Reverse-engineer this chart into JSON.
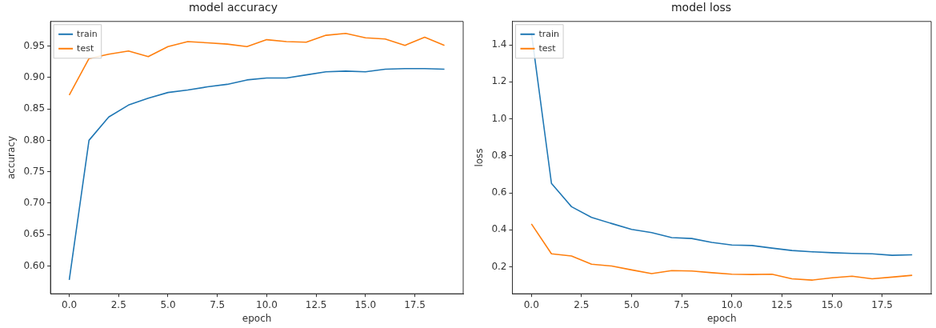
{
  "chart_data": [
    {
      "type": "line",
      "title": "model accuracy",
      "xlabel": "epoch",
      "ylabel": "accuracy",
      "x": [
        0,
        1,
        2,
        3,
        4,
        5,
        6,
        7,
        8,
        9,
        10,
        11,
        12,
        13,
        14,
        15,
        16,
        17,
        18,
        19
      ],
      "series": [
        {
          "name": "train",
          "color": "#1f77b4",
          "values": [
            0.578,
            0.8,
            0.837,
            0.856,
            0.867,
            0.876,
            0.88,
            0.885,
            0.889,
            0.896,
            0.899,
            0.899,
            0.904,
            0.909,
            0.91,
            0.909,
            0.913,
            0.914,
            0.914,
            0.913
          ]
        },
        {
          "name": "test",
          "color": "#ff7f0e",
          "values": [
            0.872,
            0.93,
            0.937,
            0.942,
            0.933,
            0.949,
            0.957,
            0.955,
            0.953,
            0.949,
            0.96,
            0.957,
            0.956,
            0.967,
            0.97,
            0.963,
            0.961,
            0.951,
            0.964,
            0.951
          ]
        }
      ],
      "xlim": [
        -0.95,
        19.95
      ],
      "ylim": [
        0.556,
        0.989
      ],
      "xticks": [
        {
          "value": 0,
          "label": "0.0"
        },
        {
          "value": 2.5,
          "label": "2.5"
        },
        {
          "value": 5,
          "label": "5.0"
        },
        {
          "value": 7.5,
          "label": "7.5"
        },
        {
          "value": 10,
          "label": "10.0"
        },
        {
          "value": 12.5,
          "label": "12.5"
        },
        {
          "value": 15,
          "label": "15.0"
        },
        {
          "value": 17.5,
          "label": "17.5"
        }
      ],
      "yticks": [
        {
          "value": 0.6,
          "label": "0.60"
        },
        {
          "value": 0.65,
          "label": "0.65"
        },
        {
          "value": 0.7,
          "label": "0.70"
        },
        {
          "value": 0.75,
          "label": "0.75"
        },
        {
          "value": 0.8,
          "label": "0.80"
        },
        {
          "value": 0.85,
          "label": "0.85"
        },
        {
          "value": 0.9,
          "label": "0.90"
        },
        {
          "value": 0.95,
          "label": "0.95"
        }
      ],
      "legend": "top left",
      "grid": false,
      "marker": "none",
      "line_style": "solid"
    },
    {
      "type": "line",
      "title": "model loss",
      "xlabel": "epoch",
      "ylabel": "loss",
      "x": [
        0,
        1,
        2,
        3,
        4,
        5,
        6,
        7,
        8,
        9,
        10,
        11,
        12,
        13,
        14,
        15,
        16,
        17,
        18,
        19
      ],
      "series": [
        {
          "name": "train",
          "color": "#1f77b4",
          "values": [
            1.465,
            0.651,
            0.525,
            0.467,
            0.434,
            0.402,
            0.385,
            0.358,
            0.353,
            0.332,
            0.318,
            0.315,
            0.301,
            0.288,
            0.281,
            0.276,
            0.272,
            0.27,
            0.262,
            0.265
          ]
        },
        {
          "name": "test",
          "color": "#ff7f0e",
          "values": [
            0.432,
            0.27,
            0.258,
            0.214,
            0.204,
            0.183,
            0.163,
            0.179,
            0.177,
            0.168,
            0.16,
            0.158,
            0.16,
            0.135,
            0.128,
            0.14,
            0.149,
            0.135,
            0.144,
            0.154
          ]
        }
      ],
      "xlim": [
        -0.95,
        19.95
      ],
      "ylim": [
        0.054,
        1.527
      ],
      "xticks": [
        {
          "value": 0,
          "label": "0.0"
        },
        {
          "value": 2.5,
          "label": "2.5"
        },
        {
          "value": 5,
          "label": "5.0"
        },
        {
          "value": 7.5,
          "label": "7.5"
        },
        {
          "value": 10,
          "label": "10.0"
        },
        {
          "value": 12.5,
          "label": "12.5"
        },
        {
          "value": 15,
          "label": "15.0"
        },
        {
          "value": 17.5,
          "label": "17.5"
        }
      ],
      "yticks": [
        {
          "value": 0.2,
          "label": "0.2"
        },
        {
          "value": 0.4,
          "label": "0.4"
        },
        {
          "value": 0.6,
          "label": "0.6"
        },
        {
          "value": 0.8,
          "label": "0.8"
        },
        {
          "value": 1.0,
          "label": "1.0"
        },
        {
          "value": 1.2,
          "label": "1.2"
        },
        {
          "value": 1.4,
          "label": "1.4"
        }
      ],
      "legend": "top left",
      "grid": false,
      "marker": "none",
      "line_style": "solid"
    }
  ]
}
